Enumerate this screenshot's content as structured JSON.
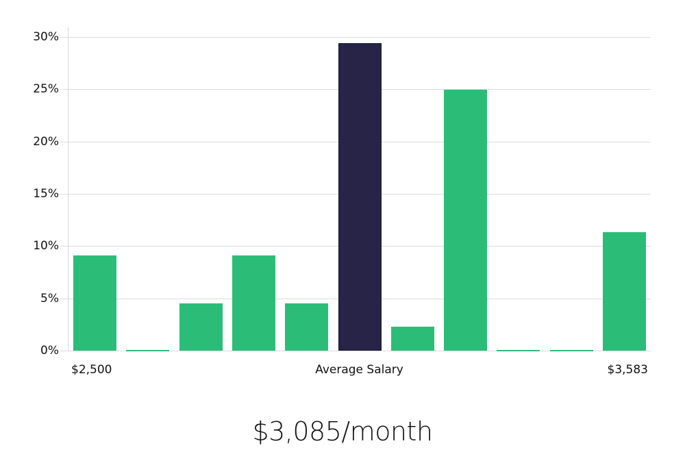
{
  "chart_data": {
    "type": "bar",
    "title": "",
    "xlabel": "Average Salary",
    "ylabel": "",
    "ylim": [
      0,
      30
    ],
    "yticks": [
      "0%",
      "5%",
      "10%",
      "15%",
      "20%",
      "25%",
      "30%"
    ],
    "x_range_labels": {
      "min": "$2,500",
      "max": "$3,583"
    },
    "grid": true,
    "categories": [
      "bin1",
      "bin2",
      "bin3",
      "bin4",
      "bin5",
      "bin6",
      "bin7",
      "bin8",
      "bin9",
      "bin10",
      "bin11"
    ],
    "values": [
      9.1,
      0,
      4.55,
      9.1,
      4.55,
      29.4,
      2.3,
      24.95,
      0,
      0,
      11.35
    ],
    "highlight_index": 5,
    "colors": {
      "default": "#2bbd77",
      "highlight": "#272447",
      "highlight_border": "#1a1840",
      "grid": "#dcdcdc"
    }
  },
  "labels": {
    "x_min": "$2,500",
    "x_center": "Average Salary",
    "x_max": "$3,583"
  },
  "summary": {
    "average": "$3,085/month"
  }
}
